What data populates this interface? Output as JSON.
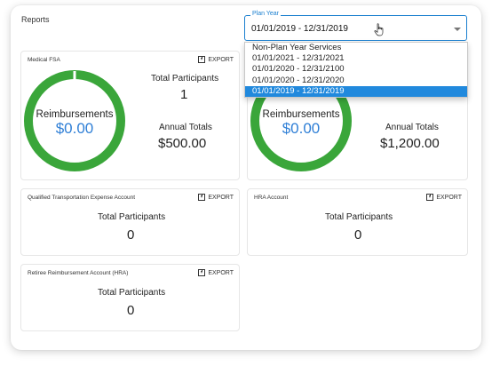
{
  "page": {
    "title": "Reports"
  },
  "plan_year": {
    "legend": "Plan Year",
    "value": "01/01/2019 - 12/31/2019",
    "options": [
      "Non-Plan Year Services",
      "01/01/2021 - 12/31/2021",
      "01/01/2020 - 12/31/2100",
      "01/01/2020 - 12/31/2020",
      "01/01/2019 - 12/31/2019"
    ],
    "selected_index": 4
  },
  "export_label": "EXPORT",
  "colors": {
    "ring": "#3aa63a",
    "accent": "#2189dd",
    "amount": "#2f7fd6"
  },
  "cards": {
    "medical_fsa": {
      "title": "Medical FSA",
      "ring_label": "Reimbursements",
      "ring_amount": "$0.00",
      "participants_label": "Total Participants",
      "participants_value": "1",
      "totals_label": "Annual Totals",
      "totals_value": "$500.00"
    },
    "second_fsa": {
      "ring_label": "Reimbursements",
      "ring_amount": "$0.00",
      "totals_label": "Annual Totals",
      "totals_value": "$1,200.00"
    },
    "qte": {
      "title": "Qualified Transportation Expense Account",
      "participants_label": "Total Participants",
      "participants_value": "0"
    },
    "hra": {
      "title": "HRA Account",
      "participants_label": "Total Participants",
      "participants_value": "0"
    },
    "retiree": {
      "title": "Retiree Reimbursement Account (HRA)",
      "participants_label": "Total Participants",
      "participants_value": "0"
    }
  }
}
